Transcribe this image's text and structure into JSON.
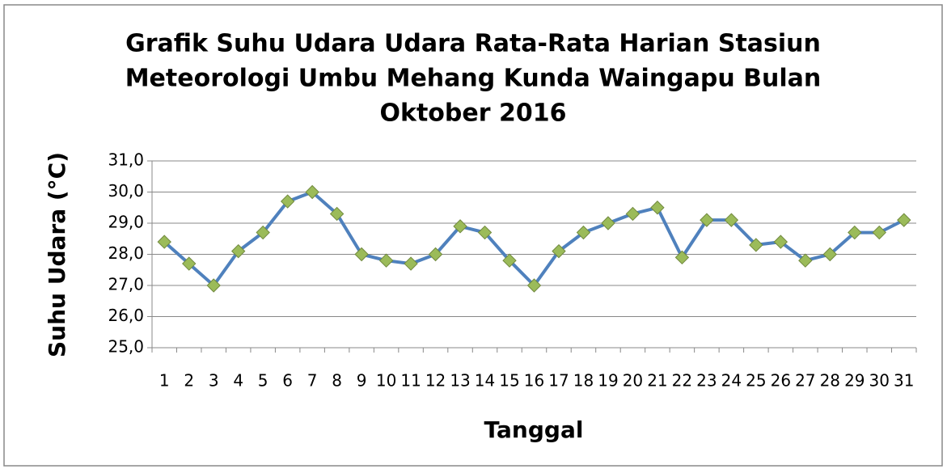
{
  "chart_data": {
    "type": "line",
    "title": [
      "Grafik Suhu Udara Udara Rata-Rata Harian Stasiun",
      "Meteorologi Umbu Mehang Kunda Waingapu Bulan",
      "Oktober 2016"
    ],
    "x_label": "Tanggal",
    "y_label": "Suhu Udara (°C)",
    "categories": [
      "1",
      "2",
      "3",
      "4",
      "5",
      "6",
      "7",
      "8",
      "9",
      "10",
      "11",
      "12",
      "13",
      "14",
      "15",
      "16",
      "17",
      "18",
      "19",
      "20",
      "21",
      "22",
      "23",
      "24",
      "25",
      "26",
      "27",
      "28",
      "29",
      "30",
      "31"
    ],
    "series": [
      {
        "name": "Suhu Udara",
        "color": "#4f81bd",
        "marker_color": "#9bbb59",
        "values": [
          28.4,
          27.7,
          27.0,
          28.1,
          28.7,
          29.7,
          30.0,
          29.3,
          28.0,
          27.8,
          27.7,
          28.0,
          28.9,
          28.7,
          27.8,
          27.0,
          28.1,
          28.7,
          29.0,
          29.3,
          29.5,
          27.9,
          29.1,
          29.1,
          28.3,
          28.4,
          27.8,
          28.0,
          28.7,
          28.7,
          29.1
        ]
      }
    ],
    "ylim": [
      25,
      31
    ],
    "yticks": [
      {
        "value": 25,
        "label": "25,0"
      },
      {
        "value": 26,
        "label": "26,0"
      },
      {
        "value": 27,
        "label": "27,0"
      },
      {
        "value": 28,
        "label": "28,0"
      },
      {
        "value": 29,
        "label": "29,0"
      },
      {
        "value": 30,
        "label": "30,0"
      },
      {
        "value": 31,
        "label": "31,0"
      }
    ],
    "grid": true
  }
}
